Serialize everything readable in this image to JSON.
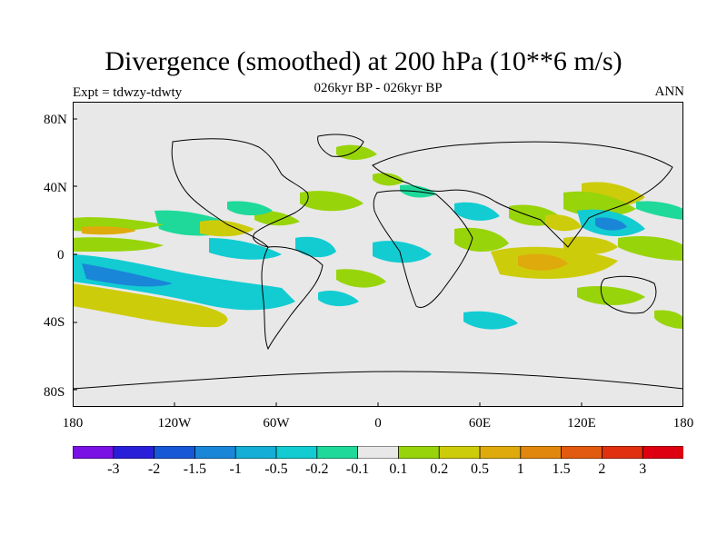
{
  "title": "Divergence (smoothed) at 200 hPa (10**6 m/s)",
  "subtitle": "026kyr BP - 026kyr BP",
  "left_label": "Expt = tdwzy-tdwty",
  "right_label": "ANN",
  "lat_ticks": [
    "80N",
    "40N",
    "0",
    "40S",
    "80S"
  ],
  "lon_ticks": [
    "180",
    "120W",
    "60W",
    "0",
    "60E",
    "120E",
    "180"
  ],
  "colorbar": {
    "labels": [
      "-3",
      "-2",
      "-1.5",
      "-1",
      "-0.5",
      "-0.2",
      "-0.1",
      "0.1",
      "0.2",
      "0.5",
      "1",
      "1.5",
      "2",
      "3"
    ],
    "colors": [
      "#7a12e6",
      "#2a1fd9",
      "#1658d6",
      "#1a86d8",
      "#14aed6",
      "#12ccd2",
      "#1ed99a",
      "#e8e8e8",
      "#98d40a",
      "#cdcc0b",
      "#dfaa0c",
      "#e2870e",
      "#e15a0f",
      "#e0300f",
      "#de0010"
    ]
  },
  "map": {
    "background": "#e8e8e8",
    "colors": {
      "pos_light": "#98d40a",
      "pos_mid": "#cdcc0b",
      "pos_strong": "#dfaa0c",
      "neg_light": "#1ed99a",
      "neg_mid": "#12ccd2",
      "neg_strong": "#1a86d8"
    }
  }
}
